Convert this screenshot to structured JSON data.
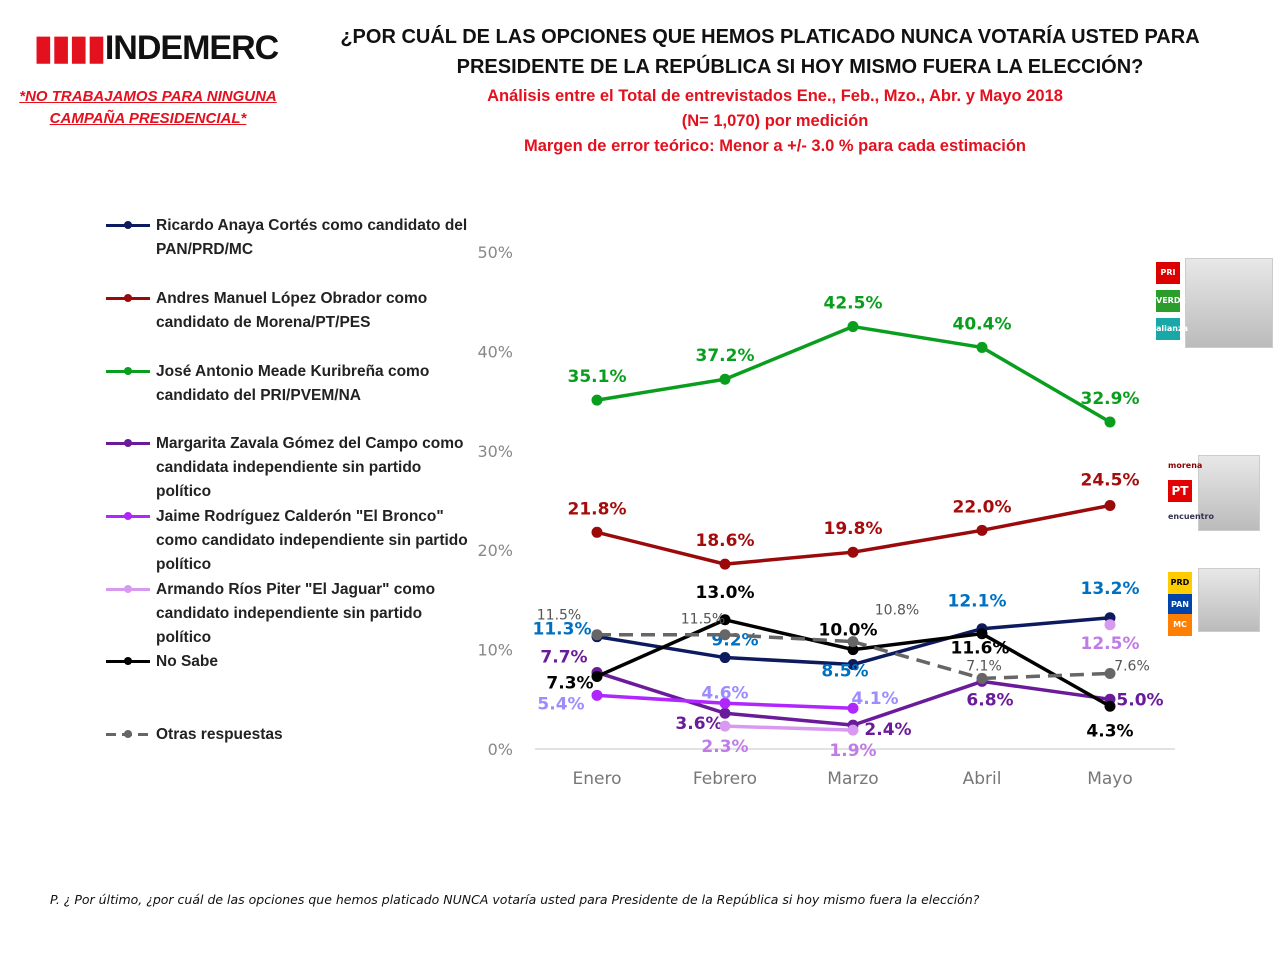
{
  "header": {
    "logo_text": "INDEMERC",
    "disclaimer": [
      "*NO TRABAJAMOS PARA NINGUNA",
      "CAMPAÑA PRESIDENCIAL*"
    ],
    "title": [
      "¿POR CUÁL DE LAS OPCIONES QUE HEMOS PLATICADO NUNCA VOTARÍA USTED PARA",
      "PRESIDENTE DE LA REPÚBLICA SI HOY MISMO FUERA LA ELECCIÓN?"
    ],
    "subtitles": [
      "Análisis entre el Total de entrevistados Ene., Feb., Mzo., Abr. y Mayo 2018",
      "(N= 1,070) por medición",
      "Margen de error teórico: Menor a +/- 3.0 % para cada estimación"
    ]
  },
  "side_logos": {
    "meade": [
      "PRI",
      "VERDE",
      "alianza"
    ],
    "amlo": [
      "morena",
      "PT",
      "encuentro"
    ],
    "anaya": [
      "PRD",
      "PAN",
      "MC"
    ]
  },
  "footer": "P. ¿ Por último, ¿por cuál de las opciones que hemos platicado NUNCA votaría usted para Presidente de la República si hoy mismo fuera la elección?",
  "chart_data": {
    "type": "line",
    "categories": [
      "Enero",
      "Febrero",
      "Marzo",
      "Abril",
      "Mayo"
    ],
    "ylim": [
      0,
      50
    ],
    "yticks": [
      "0%",
      "10%",
      "20%",
      "30%",
      "40%",
      "50%"
    ],
    "grid": false,
    "legend_placement": "left",
    "series": [
      {
        "name": "Ricardo Anaya Cortés como candidato del PAN/PRD/MC",
        "color": "#0d1b5e",
        "label_color": "#0070c0",
        "values": [
          11.3,
          9.2,
          8.5,
          12.1,
          13.2
        ],
        "labels": [
          "11.3%",
          "9.2%",
          "8.5%",
          "12.1%",
          "13.2%"
        ]
      },
      {
        "name": "Andres Manuel López Obrador como candidato de Morena/PT/PES",
        "color": "#9b0a0a",
        "label_color": "#a50d0d",
        "values": [
          21.8,
          18.6,
          19.8,
          22.0,
          24.5
        ],
        "labels": [
          "21.8%",
          "18.6%",
          "19.8%",
          "22.0%",
          "24.5%"
        ]
      },
      {
        "name": "José Antonio Meade Kuribreña como candidato del PRI/PVEM/NA",
        "color": "#0a9e1e",
        "label_color": "#0a9e1e",
        "values": [
          35.1,
          37.2,
          42.5,
          40.4,
          32.9
        ],
        "labels": [
          "35.1%",
          "37.2%",
          "42.5%",
          "40.4%",
          "32.9%"
        ]
      },
      {
        "name": "Margarita Zavala Gómez del Campo como candidata independiente sin partido político",
        "color": "#6a1b9a",
        "label_color": "#6a1b9a",
        "values": [
          7.7,
          3.6,
          2.4,
          6.8,
          5.0
        ],
        "labels": [
          "7.7%",
          "3.6%",
          "2.4%",
          "6.8%",
          "5.0%"
        ]
      },
      {
        "name": "Jaime Rodríguez Calderón \"El Bronco\" como candidato independiente sin partido político",
        "color": "#b026ff",
        "label_color": "#9b8cff",
        "values": [
          5.4,
          4.6,
          4.1,
          null,
          null
        ],
        "labels": [
          "5.4%",
          "4.6%",
          "4.1%",
          "",
          ""
        ]
      },
      {
        "name": "Armando Ríos Piter \"El Jaguar\" como candidato independiente sin partido político",
        "color": "#d79af0",
        "label_color": "#c07be6",
        "values": [
          null,
          2.3,
          1.9,
          null,
          12.5
        ],
        "labels": [
          "",
          "2.3%",
          "1.9%",
          "",
          "12.5%"
        ]
      },
      {
        "name": "No Sabe",
        "color": "#000000",
        "label_color": "#000000",
        "values": [
          7.3,
          13.0,
          10.0,
          11.6,
          4.3
        ],
        "labels": [
          "7.3%",
          "13.0%",
          "10.0%",
          "11.6%",
          "4.3%"
        ]
      },
      {
        "name": "Otras respuestas",
        "color": "#666666",
        "label_color": "#555555",
        "dashed": true,
        "values": [
          11.5,
          11.5,
          10.8,
          7.1,
          7.6
        ],
        "labels": [
          "11.5%",
          "11.5%",
          "10.8%",
          "7.1%",
          "7.6%"
        ]
      }
    ]
  }
}
